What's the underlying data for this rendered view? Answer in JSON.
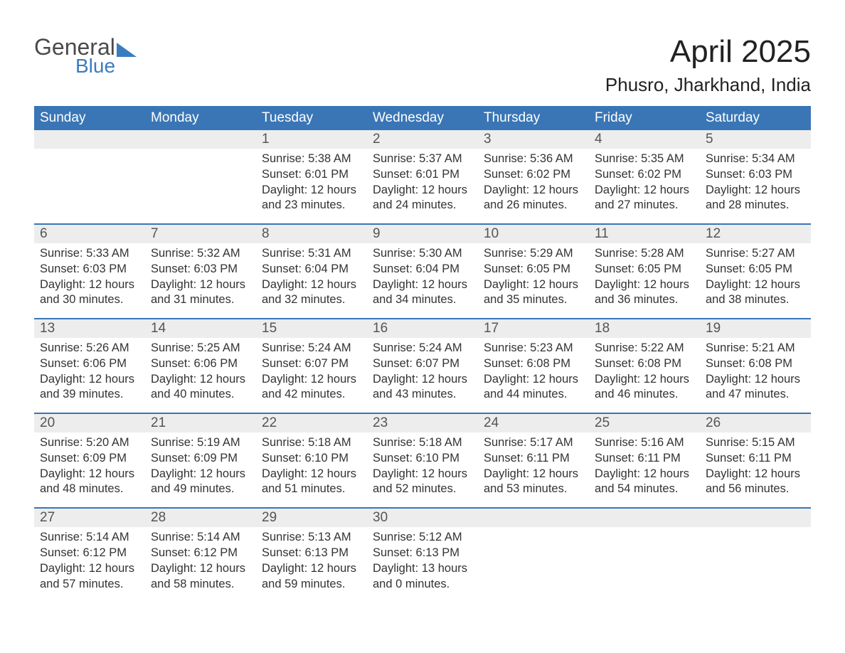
{
  "logo": {
    "word1": "General",
    "word2": "Blue"
  },
  "header": {
    "month_title": "April 2025",
    "location": "Phusro, Jharkhand, India"
  },
  "colors": {
    "header_bg": "#3a76b5",
    "daynum_bg": "#ededed",
    "text": "#333333",
    "accent": "#3b7cc0"
  },
  "day_labels": [
    "Sunday",
    "Monday",
    "Tuesday",
    "Wednesday",
    "Thursday",
    "Friday",
    "Saturday"
  ],
  "weeks": [
    [
      {
        "n": "",
        "lines": []
      },
      {
        "n": "",
        "lines": []
      },
      {
        "n": "1",
        "lines": [
          "Sunrise: 5:38 AM",
          "Sunset: 6:01 PM",
          "Daylight: 12 hours",
          "and 23 minutes."
        ]
      },
      {
        "n": "2",
        "lines": [
          "Sunrise: 5:37 AM",
          "Sunset: 6:01 PM",
          "Daylight: 12 hours",
          "and 24 minutes."
        ]
      },
      {
        "n": "3",
        "lines": [
          "Sunrise: 5:36 AM",
          "Sunset: 6:02 PM",
          "Daylight: 12 hours",
          "and 26 minutes."
        ]
      },
      {
        "n": "4",
        "lines": [
          "Sunrise: 5:35 AM",
          "Sunset: 6:02 PM",
          "Daylight: 12 hours",
          "and 27 minutes."
        ]
      },
      {
        "n": "5",
        "lines": [
          "Sunrise: 5:34 AM",
          "Sunset: 6:03 PM",
          "Daylight: 12 hours",
          "and 28 minutes."
        ]
      }
    ],
    [
      {
        "n": "6",
        "lines": [
          "Sunrise: 5:33 AM",
          "Sunset: 6:03 PM",
          "Daylight: 12 hours",
          "and 30 minutes."
        ]
      },
      {
        "n": "7",
        "lines": [
          "Sunrise: 5:32 AM",
          "Sunset: 6:03 PM",
          "Daylight: 12 hours",
          "and 31 minutes."
        ]
      },
      {
        "n": "8",
        "lines": [
          "Sunrise: 5:31 AM",
          "Sunset: 6:04 PM",
          "Daylight: 12 hours",
          "and 32 minutes."
        ]
      },
      {
        "n": "9",
        "lines": [
          "Sunrise: 5:30 AM",
          "Sunset: 6:04 PM",
          "Daylight: 12 hours",
          "and 34 minutes."
        ]
      },
      {
        "n": "10",
        "lines": [
          "Sunrise: 5:29 AM",
          "Sunset: 6:05 PM",
          "Daylight: 12 hours",
          "and 35 minutes."
        ]
      },
      {
        "n": "11",
        "lines": [
          "Sunrise: 5:28 AM",
          "Sunset: 6:05 PM",
          "Daylight: 12 hours",
          "and 36 minutes."
        ]
      },
      {
        "n": "12",
        "lines": [
          "Sunrise: 5:27 AM",
          "Sunset: 6:05 PM",
          "Daylight: 12 hours",
          "and 38 minutes."
        ]
      }
    ],
    [
      {
        "n": "13",
        "lines": [
          "Sunrise: 5:26 AM",
          "Sunset: 6:06 PM",
          "Daylight: 12 hours",
          "and 39 minutes."
        ]
      },
      {
        "n": "14",
        "lines": [
          "Sunrise: 5:25 AM",
          "Sunset: 6:06 PM",
          "Daylight: 12 hours",
          "and 40 minutes."
        ]
      },
      {
        "n": "15",
        "lines": [
          "Sunrise: 5:24 AM",
          "Sunset: 6:07 PM",
          "Daylight: 12 hours",
          "and 42 minutes."
        ]
      },
      {
        "n": "16",
        "lines": [
          "Sunrise: 5:24 AM",
          "Sunset: 6:07 PM",
          "Daylight: 12 hours",
          "and 43 minutes."
        ]
      },
      {
        "n": "17",
        "lines": [
          "Sunrise: 5:23 AM",
          "Sunset: 6:08 PM",
          "Daylight: 12 hours",
          "and 44 minutes."
        ]
      },
      {
        "n": "18",
        "lines": [
          "Sunrise: 5:22 AM",
          "Sunset: 6:08 PM",
          "Daylight: 12 hours",
          "and 46 minutes."
        ]
      },
      {
        "n": "19",
        "lines": [
          "Sunrise: 5:21 AM",
          "Sunset: 6:08 PM",
          "Daylight: 12 hours",
          "and 47 minutes."
        ]
      }
    ],
    [
      {
        "n": "20",
        "lines": [
          "Sunrise: 5:20 AM",
          "Sunset: 6:09 PM",
          "Daylight: 12 hours",
          "and 48 minutes."
        ]
      },
      {
        "n": "21",
        "lines": [
          "Sunrise: 5:19 AM",
          "Sunset: 6:09 PM",
          "Daylight: 12 hours",
          "and 49 minutes."
        ]
      },
      {
        "n": "22",
        "lines": [
          "Sunrise: 5:18 AM",
          "Sunset: 6:10 PM",
          "Daylight: 12 hours",
          "and 51 minutes."
        ]
      },
      {
        "n": "23",
        "lines": [
          "Sunrise: 5:18 AM",
          "Sunset: 6:10 PM",
          "Daylight: 12 hours",
          "and 52 minutes."
        ]
      },
      {
        "n": "24",
        "lines": [
          "Sunrise: 5:17 AM",
          "Sunset: 6:11 PM",
          "Daylight: 12 hours",
          "and 53 minutes."
        ]
      },
      {
        "n": "25",
        "lines": [
          "Sunrise: 5:16 AM",
          "Sunset: 6:11 PM",
          "Daylight: 12 hours",
          "and 54 minutes."
        ]
      },
      {
        "n": "26",
        "lines": [
          "Sunrise: 5:15 AM",
          "Sunset: 6:11 PM",
          "Daylight: 12 hours",
          "and 56 minutes."
        ]
      }
    ],
    [
      {
        "n": "27",
        "lines": [
          "Sunrise: 5:14 AM",
          "Sunset: 6:12 PM",
          "Daylight: 12 hours",
          "and 57 minutes."
        ]
      },
      {
        "n": "28",
        "lines": [
          "Sunrise: 5:14 AM",
          "Sunset: 6:12 PM",
          "Daylight: 12 hours",
          "and 58 minutes."
        ]
      },
      {
        "n": "29",
        "lines": [
          "Sunrise: 5:13 AM",
          "Sunset: 6:13 PM",
          "Daylight: 12 hours",
          "and 59 minutes."
        ]
      },
      {
        "n": "30",
        "lines": [
          "Sunrise: 5:12 AM",
          "Sunset: 6:13 PM",
          "Daylight: 13 hours",
          "and 0 minutes."
        ]
      },
      {
        "n": "",
        "lines": []
      },
      {
        "n": "",
        "lines": []
      },
      {
        "n": "",
        "lines": []
      }
    ]
  ]
}
